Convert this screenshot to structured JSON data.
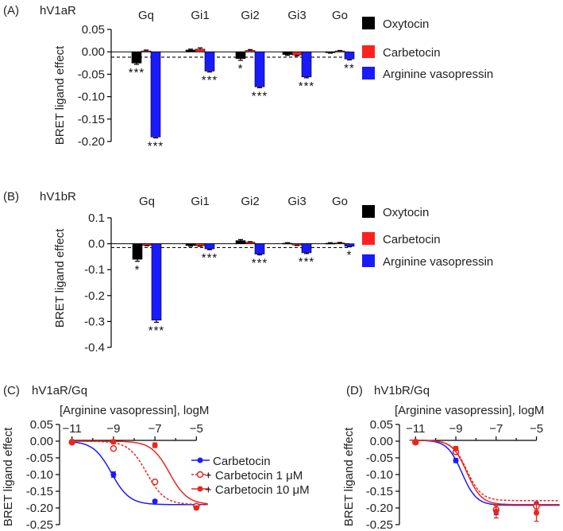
{
  "chart_data": [
    {
      "type": "bar",
      "panel": "(A)",
      "receptor": "hV1aR",
      "categories": [
        "Gq",
        "Gi1",
        "Gi2",
        "Gi3",
        "Go"
      ],
      "ylabel": "BRET ligand effect",
      "ylim": [
        -0.2,
        0.05
      ],
      "yticks": [
        "0.05",
        "0.00",
        "-0.05",
        "-0.10",
        "-0.15",
        "-0.20"
      ],
      "ytick_values": [
        0.05,
        0.0,
        -0.05,
        -0.1,
        -0.15,
        -0.2
      ],
      "threshold": -0.012,
      "series": [
        {
          "name": "Oxytocin",
          "color": "#000000",
          "values": [
            -0.025,
            0.004,
            -0.015,
            -0.006,
            -0.002
          ],
          "errors": [
            0.003,
            0.002,
            0.004,
            0.002,
            0.001
          ]
        },
        {
          "name": "Carbetocin",
          "color": "#ff2020",
          "values": [
            0.002,
            0.006,
            0.003,
            -0.007,
            0.002
          ],
          "errors": [
            0.002,
            0.003,
            0.002,
            0.002,
            0.001
          ]
        },
        {
          "name": "Arginine vasopressin",
          "color": "#1a1aff",
          "values": [
            -0.19,
            -0.043,
            -0.078,
            -0.056,
            -0.016
          ],
          "errors": [
            0.002,
            0.002,
            0.002,
            0.002,
            0.002
          ]
        }
      ],
      "significance": [
        {
          "category": "Gq",
          "series": "Oxytocin",
          "label": "***"
        },
        {
          "category": "Gq",
          "series": "Arginine vasopressin",
          "label": "***"
        },
        {
          "category": "Gi1",
          "series": "Arginine vasopressin",
          "label": "***"
        },
        {
          "category": "Gi2",
          "series": "Oxytocin",
          "label": "*"
        },
        {
          "category": "Gi2",
          "series": "Arginine vasopressin",
          "label": "***"
        },
        {
          "category": "Gi3",
          "series": "Arginine vasopressin",
          "label": "***"
        },
        {
          "category": "Go",
          "series": "Arginine vasopressin",
          "label": "**"
        }
      ]
    },
    {
      "type": "bar",
      "panel": "(B)",
      "receptor": "hV1bR",
      "categories": [
        "Gq",
        "Gi1",
        "Gi2",
        "Gi3",
        "Go"
      ],
      "ylabel": "BRET ligand effect",
      "ylim": [
        -0.4,
        0.1
      ],
      "yticks": [
        "0.1",
        "0.0",
        "-0.1",
        "-0.2",
        "-0.3",
        "-0.4"
      ],
      "ytick_values": [
        0.1,
        0.0,
        -0.1,
        -0.2,
        -0.3,
        -0.4
      ],
      "threshold": -0.015,
      "series": [
        {
          "name": "Oxytocin",
          "color": "#000000",
          "values": [
            -0.06,
            -0.007,
            0.012,
            0.002,
            0.002
          ],
          "errors": [
            0.008,
            0.003,
            0.004,
            0.002,
            0.002
          ]
        },
        {
          "name": "Carbetocin",
          "color": "#ff2020",
          "values": [
            -0.006,
            -0.008,
            0.006,
            -0.005,
            0.003
          ],
          "errors": [
            0.002,
            0.002,
            0.002,
            0.002,
            0.002
          ]
        },
        {
          "name": "Arginine vasopressin",
          "color": "#1a1aff",
          "values": [
            -0.295,
            -0.02,
            -0.04,
            -0.035,
            -0.01
          ],
          "errors": [
            0.008,
            0.003,
            0.003,
            0.003,
            0.002
          ]
        }
      ],
      "significance": [
        {
          "category": "Gq",
          "series": "Oxytocin",
          "label": "*"
        },
        {
          "category": "Gq",
          "series": "Arginine vasopressin",
          "label": "***"
        },
        {
          "category": "Gi1",
          "series": "Arginine vasopressin",
          "label": "***"
        },
        {
          "category": "Gi2",
          "series": "Arginine vasopressin",
          "label": "***"
        },
        {
          "category": "Gi3",
          "series": "Arginine vasopressin",
          "label": "***"
        },
        {
          "category": "Go",
          "series": "Arginine vasopressin",
          "label": "*"
        }
      ]
    },
    {
      "type": "line",
      "panel": "(C)",
      "receptor": "hV1aR/Gq",
      "xlabel": "[Arginine vasopressin], logM",
      "ylabel": "BRET ligand effect",
      "xlim": [
        -11.6,
        -4.4
      ],
      "ylim": [
        -0.25,
        0.05
      ],
      "xticks": [
        "−11",
        "−9",
        "−7",
        "−5"
      ],
      "xtick_values": [
        -11,
        -9,
        -7,
        -5
      ],
      "yticks": [
        "0.05",
        "0.00",
        "-0.05",
        "-0.10",
        "-0.15",
        "-0.20",
        "-0.25"
      ],
      "ytick_values": [
        0.05,
        0.0,
        -0.05,
        -0.1,
        -0.15,
        -0.2,
        -0.25
      ],
      "series": [
        {
          "name": "Carbetocin",
          "color": "#1a1aff",
          "style": "solid",
          "marker": "filled",
          "top": 0.0,
          "bottom": -0.19,
          "logEC50": -9.1,
          "hill": 1.0,
          "points": [
            [
              -11,
              -0.003
            ],
            [
              -9,
              -0.1
            ],
            [
              -7,
              -0.18
            ],
            [
              -5,
              -0.195
            ]
          ],
          "errors": [
            0.004,
            0.008,
            0.003,
            0.003
          ]
        },
        {
          "name": "+ Carbetocin 1 μM",
          "color": "#e8261f",
          "style": "dashed",
          "marker": "open",
          "top": 0.0,
          "bottom": -0.19,
          "logEC50": -7.4,
          "hill": 1.0,
          "points": [
            [
              -11,
              -0.003
            ],
            [
              -9,
              -0.022
            ],
            [
              -7,
              -0.122
            ],
            [
              -5,
              -0.195
            ]
          ],
          "errors": [
            0.004,
            0.005,
            0.006,
            0.004
          ]
        },
        {
          "name": "+ Carbetocin 10 μM",
          "color": "#e8261f",
          "style": "solid",
          "marker": "filled",
          "top": 0.0,
          "bottom": -0.19,
          "logEC50": -6.3,
          "hill": 1.0,
          "points": [
            [
              -11,
              -0.002
            ],
            [
              -9,
              -0.002
            ],
            [
              -7,
              -0.012
            ],
            [
              -5,
              -0.2
            ]
          ],
          "errors": [
            0.004,
            0.006,
            0.007,
            0.005
          ]
        }
      ]
    },
    {
      "type": "line",
      "panel": "(D)",
      "receptor": "hV1bR/Gq",
      "xlabel": "[Arginine vasopressin], logM",
      "ylabel": "BRET ligand effect",
      "xlim": [
        -11.8,
        -3.8
      ],
      "ylim": [
        -0.25,
        0.05
      ],
      "xticks": [
        "−11",
        "−9",
        "−7",
        "−5"
      ],
      "xtick_values": [
        -11,
        -9,
        -7,
        -5
      ],
      "yticks": [
        "0.05",
        "0.00",
        "-0.05",
        "-0.10",
        "-0.15",
        "-0.20",
        "-0.25"
      ],
      "ytick_values": [
        0.05,
        0.0,
        -0.05,
        -0.1,
        -0.15,
        -0.2,
        -0.25
      ],
      "series": [
        {
          "name": "Carbetocin",
          "color": "#1a1aff",
          "style": "solid",
          "marker": "filled",
          "top": 0.003,
          "bottom": -0.192,
          "logEC50": -8.7,
          "hill": 1.2,
          "points": [
            [
              -11,
              -0.002
            ],
            [
              -9,
              -0.058
            ],
            [
              -7,
              -0.21
            ],
            [
              -5,
              -0.19
            ]
          ],
          "errors": [
            0.004,
            0.006,
            0.01,
            0.008
          ]
        },
        {
          "name": "+ Carbetocin 1 μM",
          "color": "#e8261f",
          "style": "dashed",
          "marker": "open",
          "top": 0.003,
          "bottom": -0.178,
          "logEC50": -8.45,
          "hill": 1.2,
          "points": [
            [
              -11,
              -0.003
            ],
            [
              -9,
              -0.032
            ],
            [
              -7,
              -0.205
            ],
            [
              -5,
              -0.195
            ]
          ],
          "errors": [
            0.004,
            0.006,
            0.012,
            0.012
          ]
        },
        {
          "name": "+ Carbetocin 10 μM",
          "color": "#e8261f",
          "style": "solid",
          "marker": "filled",
          "top": 0.003,
          "bottom": -0.19,
          "logEC50": -8.45,
          "hill": 1.2,
          "points": [
            [
              -11,
              -0.003
            ],
            [
              -9,
              -0.022
            ],
            [
              -7,
              -0.21
            ],
            [
              -5,
              -0.215
            ]
          ],
          "errors": [
            0.004,
            0.006,
            0.02,
            0.025
          ]
        }
      ]
    }
  ]
}
